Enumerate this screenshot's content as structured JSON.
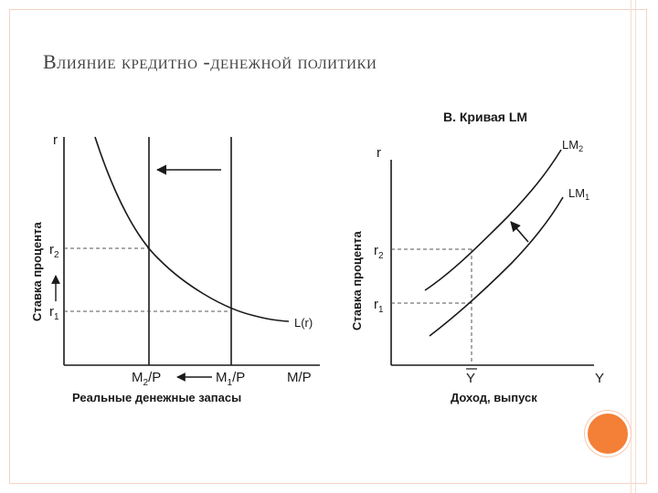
{
  "slide": {
    "title": "Влияние кредитно -денежной политики"
  },
  "left_chart": {
    "y_axis_letter": "r",
    "y_axis_title": "Ставка процента",
    "r2_main": "r",
    "r2_sub": "2",
    "r1_main": "r",
    "r1_sub": "1",
    "m2_main": "M",
    "m2_sub": "2",
    "m2_rest": "/P",
    "m1_main": "M",
    "m1_sub": "1",
    "m1_rest": "/P",
    "x_axis_end": "M/P",
    "x_axis_title": "Реальные денежные запасы",
    "curve_label": "L(r)"
  },
  "right_chart": {
    "panel_title": "В. Кривая LM",
    "y_axis_letter": "r",
    "y_axis_title": "Ставка процента",
    "r2_main": "r",
    "r2_sub": "2",
    "r1_main": "r",
    "r1_sub": "1",
    "lm2_main": "LM",
    "lm2_sub": "2",
    "lm1_main": "LM",
    "lm1_sub": "1",
    "ybar": "Y",
    "x_axis_end": "Y",
    "x_axis_title": "Доход, выпуск"
  },
  "colors": {
    "accent_circle": "#f47f36",
    "frame": "#f3d3c4"
  }
}
